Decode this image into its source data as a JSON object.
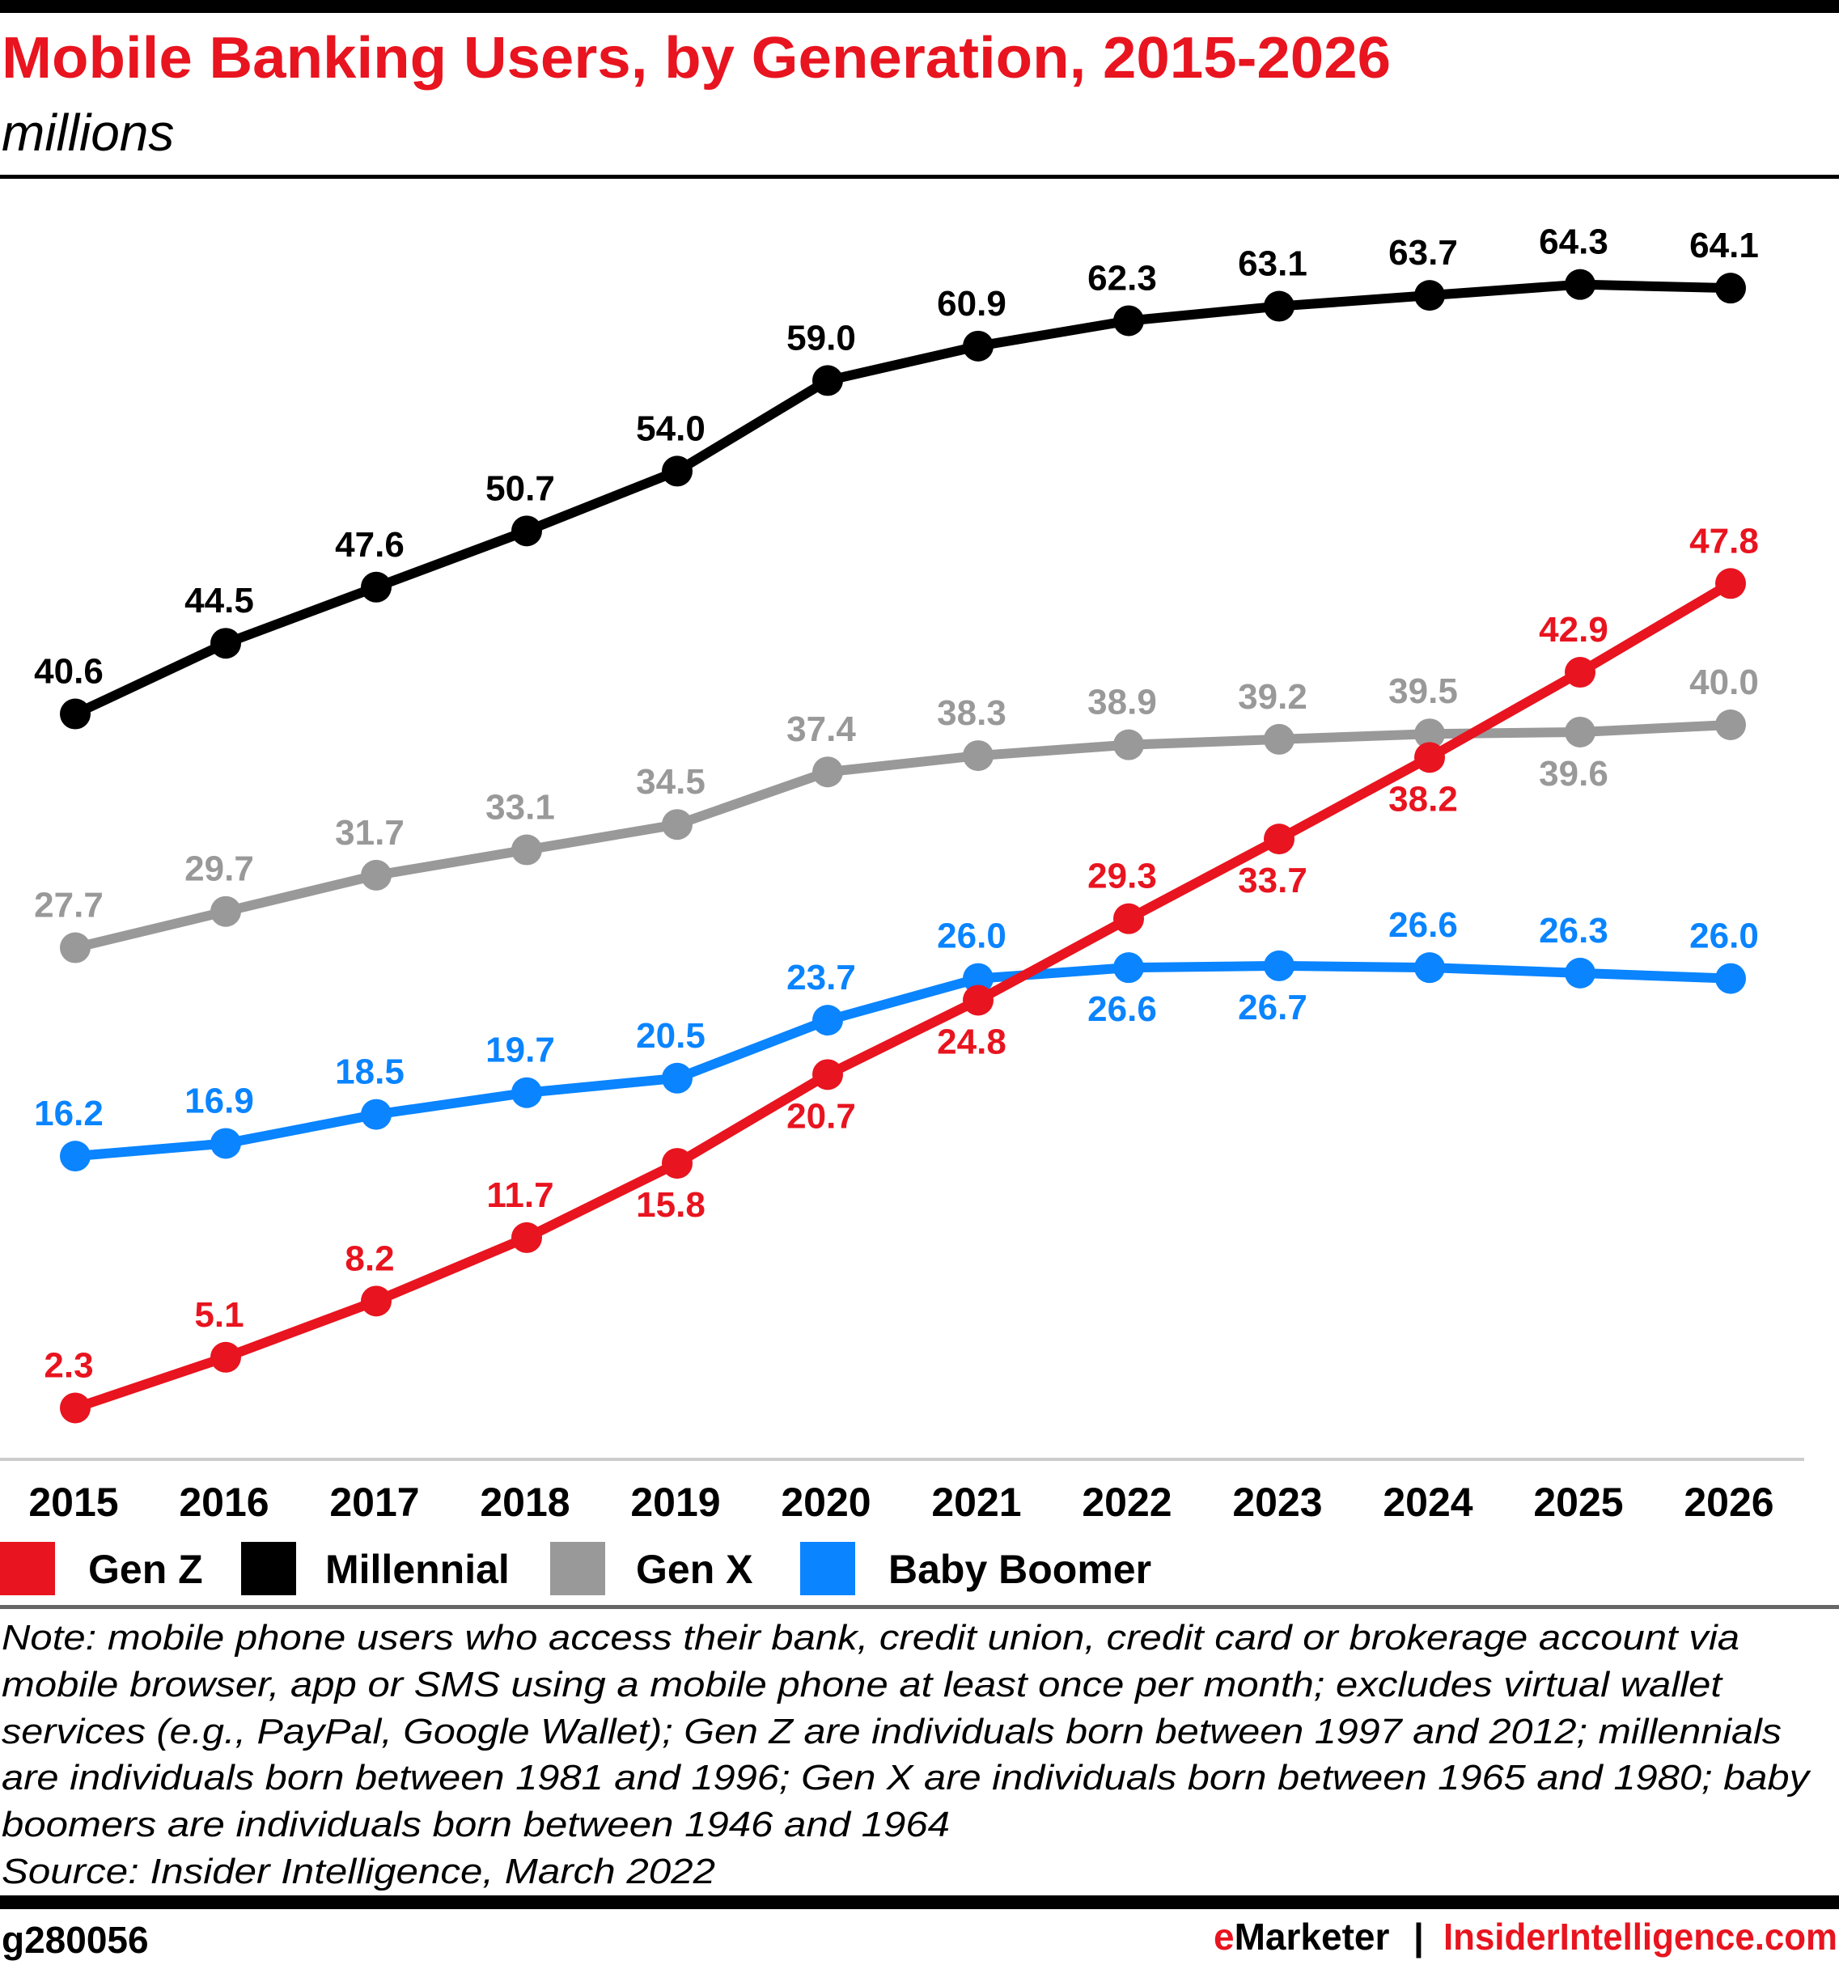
{
  "header": {
    "title": "Mobile Banking Users, by Generation, 2015-2026",
    "subtitle": "millions"
  },
  "chart_data": {
    "type": "line",
    "title": "Mobile Banking Users, by Generation, 2015-2026",
    "subtitle": "millions",
    "x": [
      "2015",
      "2016",
      "2017",
      "2018",
      "2019",
      "2020",
      "2021",
      "2022",
      "2023",
      "2024",
      "2025",
      "2026"
    ],
    "ylim": [
      0,
      70
    ],
    "grid": false,
    "legend_position": "bottom-left",
    "series": [
      {
        "name": "Gen Z",
        "color": "#e8141f",
        "values": [
          2.3,
          5.1,
          8.2,
          11.7,
          15.8,
          20.7,
          24.8,
          29.3,
          33.7,
          38.2,
          42.9,
          47.8
        ],
        "label_side": [
          "above",
          "above",
          "above",
          "above",
          "below",
          "below",
          "below",
          "above",
          "below",
          "below",
          "above",
          "above"
        ]
      },
      {
        "name": "Millennial",
        "color": "#000000",
        "values": [
          40.6,
          44.5,
          47.6,
          50.7,
          54.0,
          59.0,
          60.9,
          62.3,
          63.1,
          63.7,
          64.3,
          64.1
        ],
        "label_side": [
          "above",
          "above",
          "above",
          "above",
          "above",
          "above",
          "above",
          "above",
          "above",
          "above",
          "above",
          "above"
        ]
      },
      {
        "name": "Gen X",
        "color": "#999999",
        "values": [
          27.7,
          29.7,
          31.7,
          33.1,
          34.5,
          37.4,
          38.3,
          38.9,
          39.2,
          39.5,
          39.6,
          40.0
        ],
        "label_side": [
          "above",
          "above",
          "above",
          "above",
          "above",
          "above",
          "above",
          "above",
          "above",
          "above",
          "below",
          "above"
        ]
      },
      {
        "name": "Baby Boomer",
        "color": "#0a84ff",
        "values": [
          16.2,
          16.9,
          18.5,
          19.7,
          20.5,
          23.7,
          26.0,
          26.6,
          26.7,
          26.6,
          26.3,
          26.0
        ],
        "label_side": [
          "above",
          "above",
          "above",
          "above",
          "above",
          "above",
          "above",
          "below",
          "below",
          "above",
          "above",
          "above"
        ]
      }
    ]
  },
  "notes": [
    "Note: mobile phone users who access their bank, credit union, credit card or brokerage account via",
    "mobile browser, app or SMS using a mobile phone at least once per month; excludes virtual wallet",
    "services (e.g., PayPal, Google Wallet); Gen Z are individuals born between 1997 and 2012; millennials",
    "are individuals born between 1981 and 1996; Gen X are individuals born between 1965 and 1980; baby",
    "boomers are individuals born between 1946 and 1964",
    "Source: Insider Intelligence, March 2022"
  ],
  "footer": {
    "chart_id": "g280056",
    "brand": "eMarketer",
    "separator": "|",
    "site": "InsiderIntelligence.com"
  }
}
